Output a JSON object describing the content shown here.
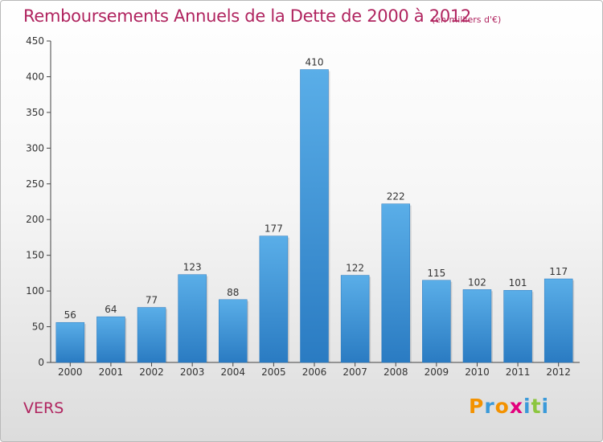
{
  "title": "Remboursements Annuels de la Dette de 2000 à 2012",
  "subtitle": "(en milliers d'€)",
  "place": "VERS",
  "logo": {
    "letters": [
      "P",
      "r",
      "o",
      "x",
      "i",
      "t",
      "i"
    ],
    "colors": [
      "#f39200",
      "#3b9ad9",
      "#f39200",
      "#e3007d",
      "#3b9ad9",
      "#8cc63f",
      "#3b9ad9"
    ]
  },
  "chart_data": {
    "type": "bar",
    "categories": [
      "2000",
      "2001",
      "2002",
      "2003",
      "2004",
      "2005",
      "2006",
      "2007",
      "2008",
      "2009",
      "2010",
      "2011",
      "2012"
    ],
    "values": [
      56,
      64,
      77,
      123,
      88,
      177,
      410,
      122,
      222,
      115,
      102,
      101,
      117
    ],
    "title": "Remboursements Annuels de la Dette de 2000 à 2012",
    "subtitle": "(en milliers d'€)",
    "ylim": [
      0,
      450
    ],
    "yticks": [
      0,
      50,
      100,
      150,
      200,
      250,
      300,
      350,
      400,
      450
    ],
    "grid": false,
    "bar_color": "#3a8fd6",
    "title_color": "#b0245f"
  }
}
